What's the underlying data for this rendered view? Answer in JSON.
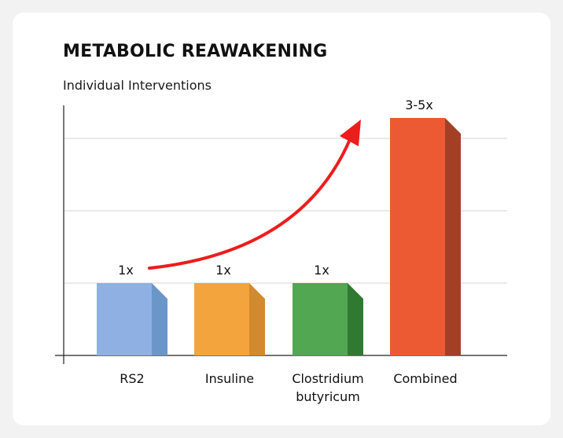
{
  "chart_data": {
    "type": "bar",
    "title": "METABOLIC REAWAKENING",
    "subtitle": "Individual Interventions",
    "xlabel": "",
    "ylabel": "",
    "categories": [
      "RS2",
      "Insuline",
      "Clostridium butyricum",
      "Combined"
    ],
    "category_lines": [
      [
        "RS2"
      ],
      [
        "Insuline"
      ],
      [
        "Clostridium",
        "butyricum"
      ],
      [
        "Combined"
      ]
    ],
    "values": [
      1,
      1,
      1,
      3.5
    ],
    "data_labels": [
      "1x",
      "1x",
      "1x",
      "3-5x"
    ],
    "ylim": [
      0,
      3.3
    ],
    "gridlines": [
      1,
      2,
      3
    ],
    "colors": [
      {
        "front": "#8eb0e2",
        "side": "#6b96ca"
      },
      {
        "front": "#f4a43c",
        "side": "#d28a30"
      },
      {
        "front": "#52a752",
        "side": "#2f7a30"
      },
      {
        "front": "#ec5a34",
        "side": "#a33f24"
      }
    ],
    "annotation": {
      "type": "curved-arrow",
      "color": "#ee1c1c",
      "from_category": "RS2",
      "to_category": "Combined"
    },
    "grid": true,
    "legend": "none"
  }
}
